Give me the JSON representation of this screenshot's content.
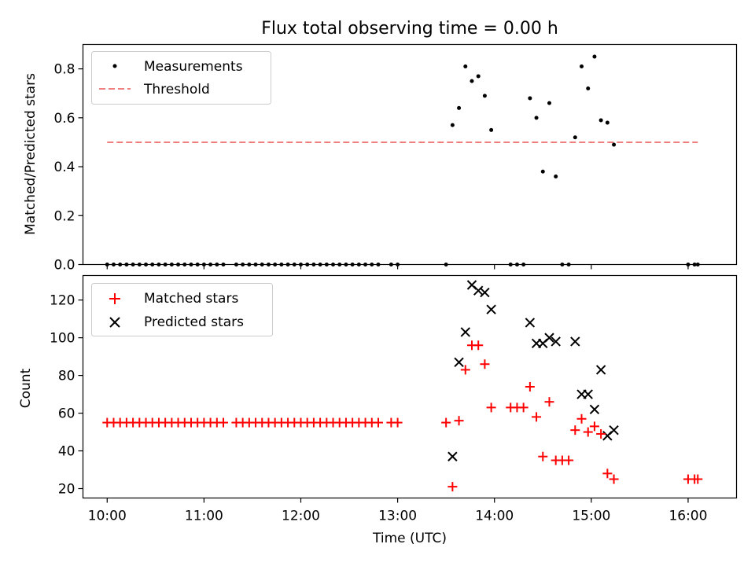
{
  "title": "Flux total observing time = 0.00 h",
  "colors": {
    "measurement": "#000000",
    "threshold": "#f08080",
    "matched": "#ff0000",
    "predicted": "#000000"
  },
  "x_ticks": [
    "10:00",
    "11:00",
    "12:00",
    "13:00",
    "14:00",
    "15:00",
    "16:00"
  ],
  "chart_data": [
    {
      "type": "scatter",
      "panel": "top",
      "title": "Flux total observing time = 0.00 h",
      "xlabel": "",
      "ylabel": "Matched/Predicted stars",
      "xlim": [
        "09:45",
        "16:30"
      ],
      "ylim": [
        0,
        0.9
      ],
      "y_ticks": [
        "0.0",
        "0.2",
        "0.4",
        "0.6",
        "0.8"
      ],
      "legend_placement": "upper-left",
      "series": [
        {
          "name": "Measurements",
          "marker": "dot",
          "points": [
            [
              "10:00",
              0
            ],
            [
              "10:04",
              0
            ],
            [
              "10:08",
              0
            ],
            [
              "10:12",
              0
            ],
            [
              "10:16",
              0
            ],
            [
              "10:20",
              0
            ],
            [
              "10:24",
              0
            ],
            [
              "10:28",
              0
            ],
            [
              "10:32",
              0
            ],
            [
              "10:36",
              0
            ],
            [
              "10:40",
              0
            ],
            [
              "10:44",
              0
            ],
            [
              "10:48",
              0
            ],
            [
              "10:52",
              0
            ],
            [
              "10:56",
              0
            ],
            [
              "11:00",
              0
            ],
            [
              "11:04",
              0
            ],
            [
              "11:08",
              0
            ],
            [
              "11:12",
              0
            ],
            [
              "11:20",
              0
            ],
            [
              "11:24",
              0
            ],
            [
              "11:28",
              0
            ],
            [
              "11:32",
              0
            ],
            [
              "11:36",
              0
            ],
            [
              "11:40",
              0
            ],
            [
              "11:44",
              0
            ],
            [
              "11:48",
              0
            ],
            [
              "11:52",
              0
            ],
            [
              "11:56",
              0
            ],
            [
              "12:00",
              0
            ],
            [
              "12:04",
              0
            ],
            [
              "12:08",
              0
            ],
            [
              "12:12",
              0
            ],
            [
              "12:16",
              0
            ],
            [
              "12:20",
              0
            ],
            [
              "12:24",
              0
            ],
            [
              "12:28",
              0
            ],
            [
              "12:32",
              0
            ],
            [
              "12:36",
              0
            ],
            [
              "12:40",
              0
            ],
            [
              "12:44",
              0
            ],
            [
              "12:48",
              0
            ],
            [
              "12:56",
              0
            ],
            [
              "13:00",
              0
            ],
            [
              "13:30",
              0
            ],
            [
              "13:34",
              0.57
            ],
            [
              "13:38",
              0.64
            ],
            [
              "13:42",
              0.81
            ],
            [
              "13:46",
              0.75
            ],
            [
              "13:50",
              0.77
            ],
            [
              "13:54",
              0.69
            ],
            [
              "13:58",
              0.55
            ],
            [
              "14:10",
              0
            ],
            [
              "14:14",
              0
            ],
            [
              "14:18",
              0
            ],
            [
              "14:22",
              0.68
            ],
            [
              "14:26",
              0.6
            ],
            [
              "14:30",
              0.38
            ],
            [
              "14:34",
              0.66
            ],
            [
              "14:38",
              0.36
            ],
            [
              "14:42",
              0
            ],
            [
              "14:46",
              0
            ],
            [
              "14:50",
              0.52
            ],
            [
              "14:54",
              0.81
            ],
            [
              "14:58",
              0.72
            ],
            [
              "15:02",
              0.85
            ],
            [
              "15:06",
              0.59
            ],
            [
              "15:10",
              0.58
            ],
            [
              "15:14",
              0.49
            ],
            [
              "16:00",
              0
            ],
            [
              "16:04",
              0
            ],
            [
              "16:06",
              0
            ]
          ]
        },
        {
          "name": "Threshold",
          "line": "dashed",
          "x": [
            "10:00",
            "16:06"
          ],
          "y": [
            0.5,
            0.5
          ]
        }
      ]
    },
    {
      "type": "scatter",
      "panel": "bottom",
      "xlabel": "Time (UTC)",
      "ylabel": "Count",
      "xlim": [
        "09:45",
        "16:30"
      ],
      "ylim": [
        15,
        133
      ],
      "y_ticks": [
        "20",
        "40",
        "60",
        "80",
        "100",
        "120"
      ],
      "legend_placement": "upper-left",
      "series": [
        {
          "name": "Matched stars",
          "marker": "plus",
          "points": [
            [
              "10:00",
              55
            ],
            [
              "10:04",
              55
            ],
            [
              "10:08",
              55
            ],
            [
              "10:12",
              55
            ],
            [
              "10:16",
              55
            ],
            [
              "10:20",
              55
            ],
            [
              "10:24",
              55
            ],
            [
              "10:28",
              55
            ],
            [
              "10:32",
              55
            ],
            [
              "10:36",
              55
            ],
            [
              "10:40",
              55
            ],
            [
              "10:44",
              55
            ],
            [
              "10:48",
              55
            ],
            [
              "10:52",
              55
            ],
            [
              "10:56",
              55
            ],
            [
              "11:00",
              55
            ],
            [
              "11:04",
              55
            ],
            [
              "11:08",
              55
            ],
            [
              "11:12",
              55
            ],
            [
              "11:20",
              55
            ],
            [
              "11:24",
              55
            ],
            [
              "11:28",
              55
            ],
            [
              "11:32",
              55
            ],
            [
              "11:36",
              55
            ],
            [
              "11:40",
              55
            ],
            [
              "11:44",
              55
            ],
            [
              "11:48",
              55
            ],
            [
              "11:52",
              55
            ],
            [
              "11:56",
              55
            ],
            [
              "12:00",
              55
            ],
            [
              "12:04",
              55
            ],
            [
              "12:08",
              55
            ],
            [
              "12:12",
              55
            ],
            [
              "12:16",
              55
            ],
            [
              "12:20",
              55
            ],
            [
              "12:24",
              55
            ],
            [
              "12:28",
              55
            ],
            [
              "12:32",
              55
            ],
            [
              "12:36",
              55
            ],
            [
              "12:40",
              55
            ],
            [
              "12:44",
              55
            ],
            [
              "12:48",
              55
            ],
            [
              "12:56",
              55
            ],
            [
              "13:00",
              55
            ],
            [
              "13:30",
              55
            ],
            [
              "13:34",
              21
            ],
            [
              "13:38",
              56
            ],
            [
              "13:42",
              83
            ],
            [
              "13:46",
              96
            ],
            [
              "13:50",
              96
            ],
            [
              "13:54",
              86
            ],
            [
              "13:58",
              63
            ],
            [
              "14:10",
              63
            ],
            [
              "14:14",
              63
            ],
            [
              "14:18",
              63
            ],
            [
              "14:22",
              74
            ],
            [
              "14:26",
              58
            ],
            [
              "14:30",
              37
            ],
            [
              "14:34",
              66
            ],
            [
              "14:38",
              35
            ],
            [
              "14:42",
              35
            ],
            [
              "14:46",
              35
            ],
            [
              "14:50",
              51
            ],
            [
              "14:54",
              57
            ],
            [
              "14:58",
              50
            ],
            [
              "15:02",
              53
            ],
            [
              "15:06",
              49
            ],
            [
              "15:10",
              28
            ],
            [
              "15:14",
              25
            ],
            [
              "16:00",
              25
            ],
            [
              "16:04",
              25
            ],
            [
              "16:06",
              25
            ]
          ]
        },
        {
          "name": "Predicted stars",
          "marker": "x",
          "points": [
            [
              "13:34",
              37
            ],
            [
              "13:38",
              87
            ],
            [
              "13:42",
              103
            ],
            [
              "13:46",
              128
            ],
            [
              "13:50",
              125
            ],
            [
              "13:54",
              124
            ],
            [
              "13:58",
              115
            ],
            [
              "14:22",
              108
            ],
            [
              "14:26",
              97
            ],
            [
              "14:30",
              97
            ],
            [
              "14:34",
              100
            ],
            [
              "14:38",
              98
            ],
            [
              "14:50",
              98
            ],
            [
              "14:54",
              70
            ],
            [
              "14:58",
              70
            ],
            [
              "15:02",
              62
            ],
            [
              "15:06",
              83
            ],
            [
              "15:10",
              48
            ],
            [
              "15:14",
              51
            ]
          ]
        }
      ]
    }
  ]
}
